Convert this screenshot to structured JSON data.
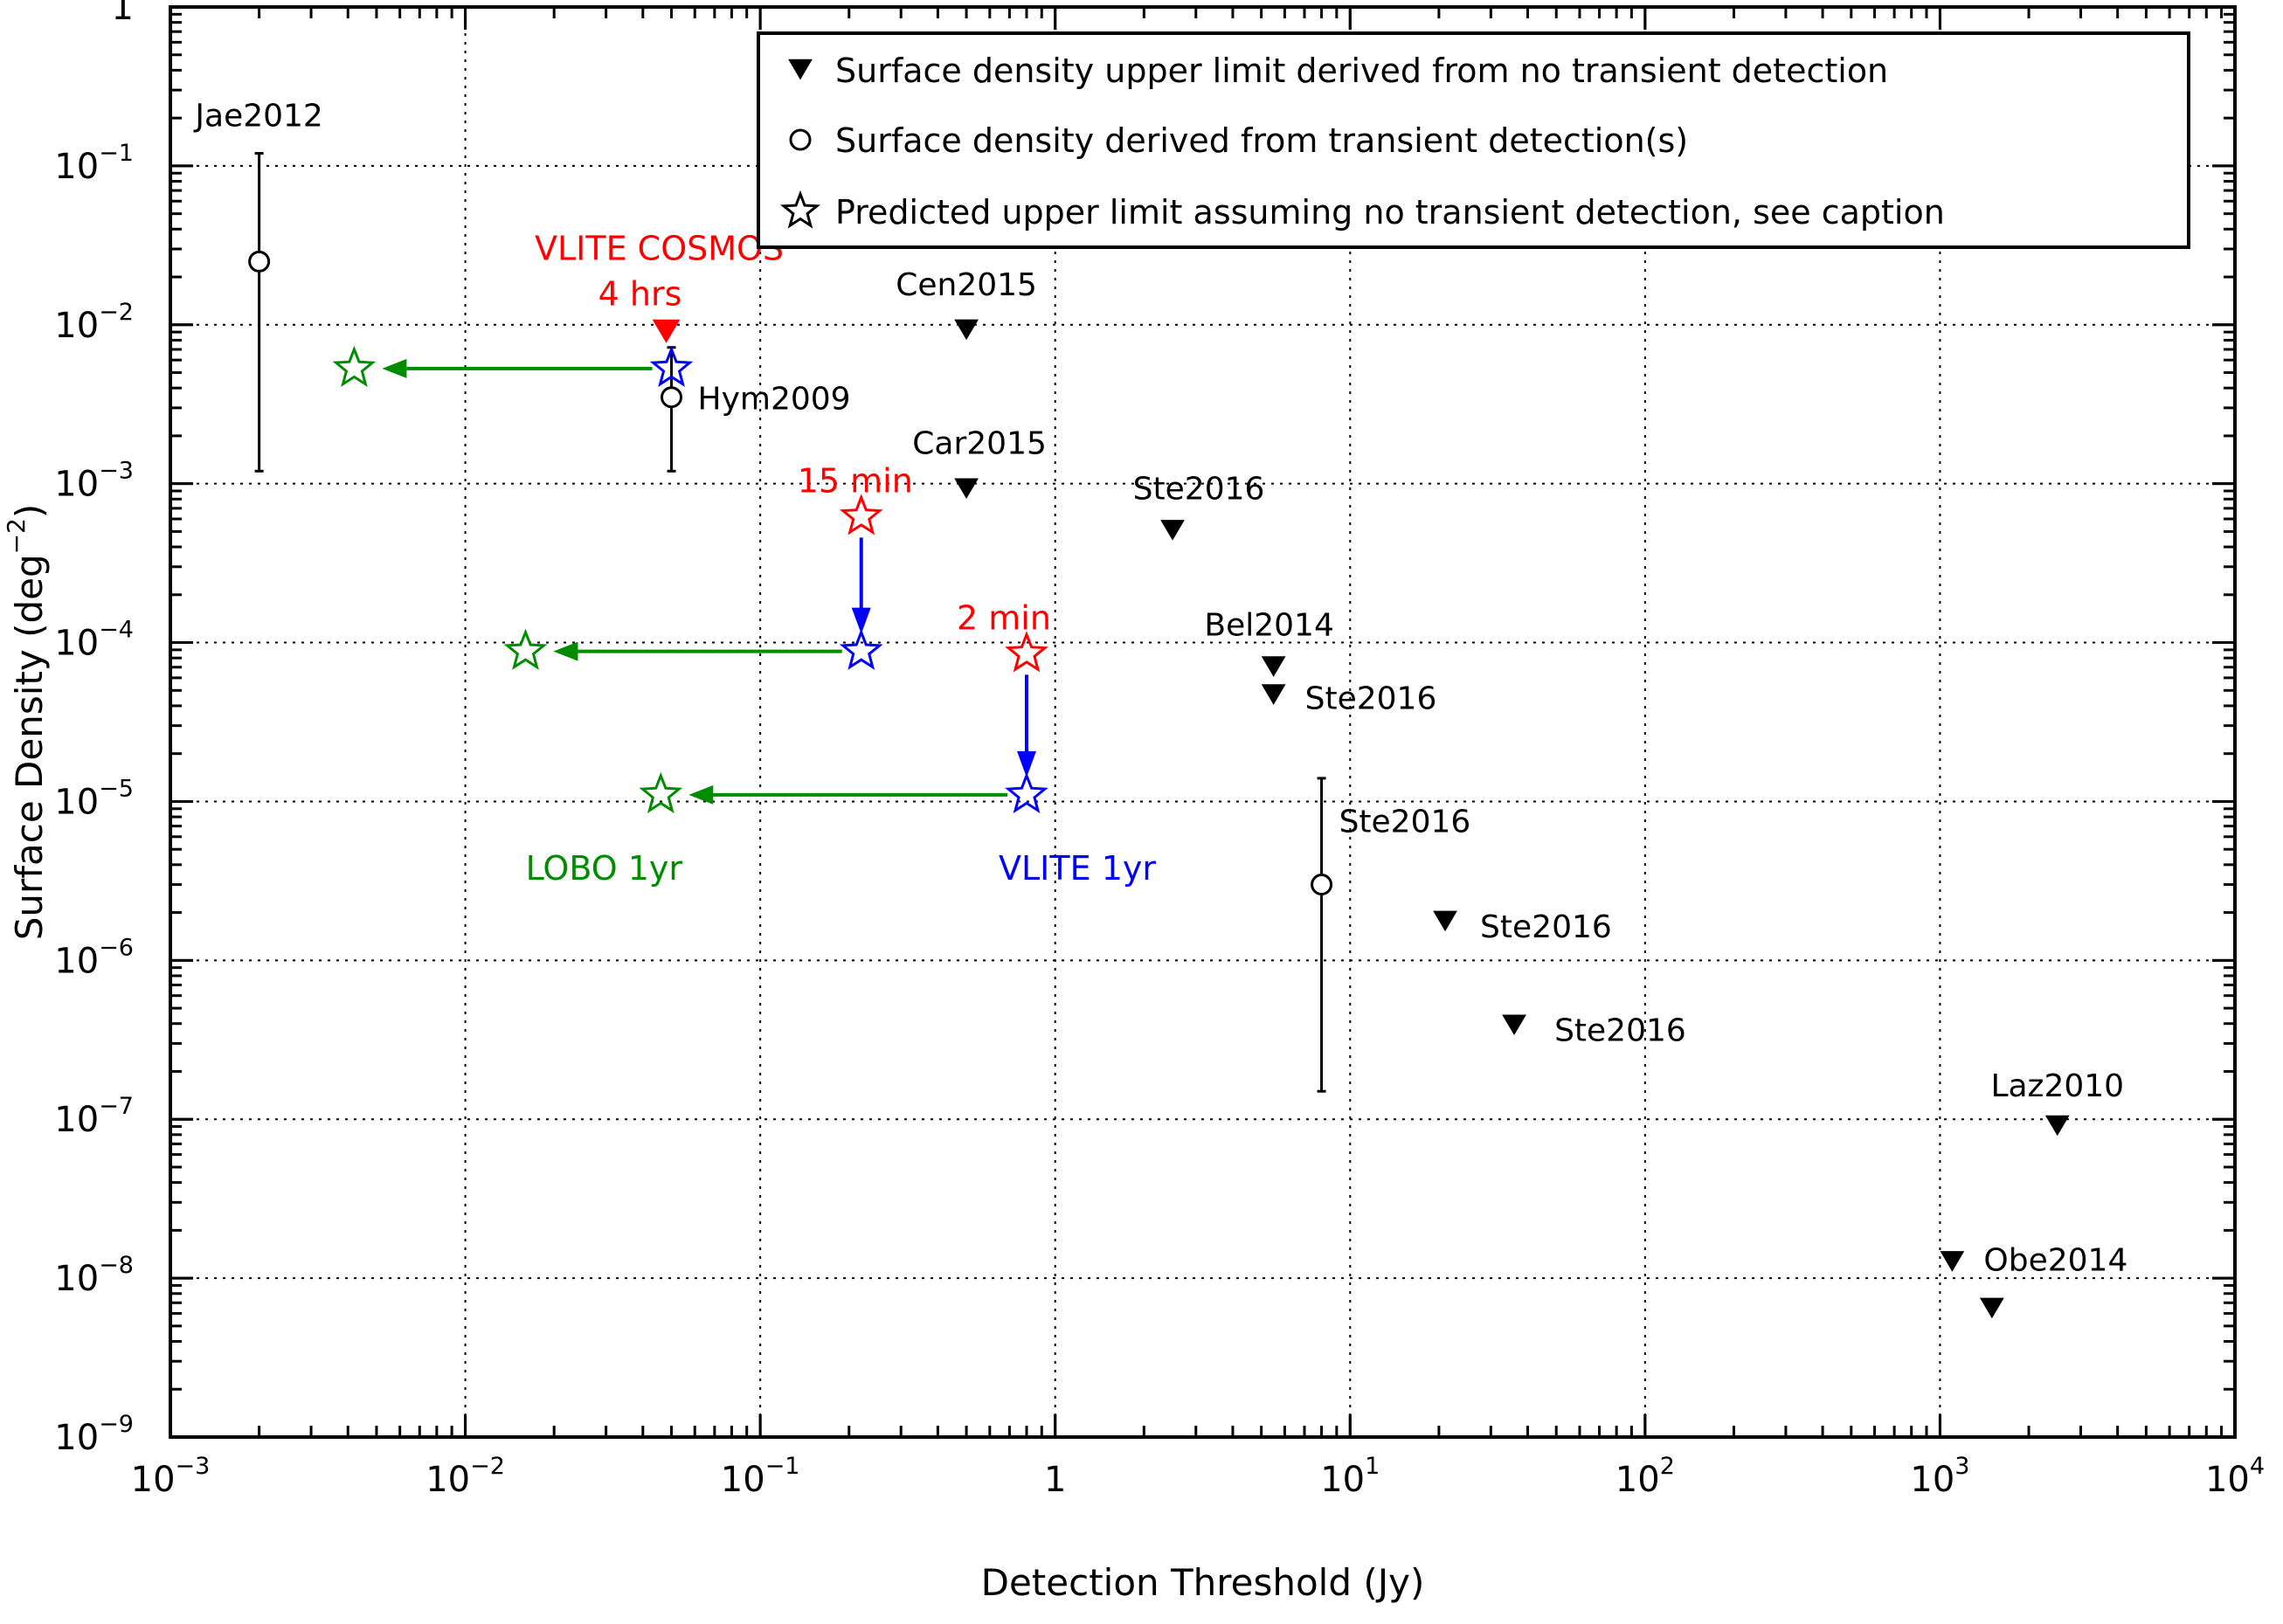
{
  "chart_data": {
    "type": "scatter",
    "title": "",
    "xlabel": "Detection Threshold (Jy)",
    "ylabel_prefix": "Surface Density (deg",
    "ylabel_exp": "−2",
    "ylabel_suffix": ")",
    "xscale": "log",
    "yscale": "log",
    "xlim": [
      0.001,
      10000
    ],
    "ylim": [
      1e-09,
      1
    ],
    "grid": true,
    "x_ticks": [
      {
        "value": 0.001,
        "base": "10",
        "exp": "−3"
      },
      {
        "value": 0.01,
        "base": "10",
        "exp": "−2"
      },
      {
        "value": 0.1,
        "base": "10",
        "exp": "−1"
      },
      {
        "value": 1,
        "base": "1",
        "exp": ""
      },
      {
        "value": 10,
        "base": "10",
        "exp": "1"
      },
      {
        "value": 100,
        "base": "10",
        "exp": "2"
      },
      {
        "value": 1000,
        "base": "10",
        "exp": "3"
      },
      {
        "value": 10000,
        "base": "10",
        "exp": "4"
      }
    ],
    "y_ticks": [
      {
        "value": 1e-09,
        "base": "10",
        "exp": "−9"
      },
      {
        "value": 1e-08,
        "base": "10",
        "exp": "−8"
      },
      {
        "value": 1e-07,
        "base": "10",
        "exp": "−7"
      },
      {
        "value": 1e-06,
        "base": "10",
        "exp": "−6"
      },
      {
        "value": 1e-05,
        "base": "10",
        "exp": "−5"
      },
      {
        "value": 0.0001,
        "base": "10",
        "exp": "−4"
      },
      {
        "value": 0.001,
        "base": "10",
        "exp": "−3"
      },
      {
        "value": 0.01,
        "base": "10",
        "exp": "−2"
      },
      {
        "value": 0.1,
        "base": "10",
        "exp": "−1"
      },
      {
        "value": 1,
        "base": "1",
        "exp": ""
      }
    ],
    "legend": {
      "position": "top-right",
      "entries": [
        {
          "marker": "triangle-down",
          "label": "Surface density upper limit derived from no transient detection"
        },
        {
          "marker": "circle-open",
          "label": "Surface density derived from transient detection(s)"
        },
        {
          "marker": "star-open",
          "label": "Predicted upper limit assuming no transient detection, see caption"
        }
      ]
    },
    "upper_limits": [
      {
        "label": "Cen2015",
        "x": 0.5,
        "y": 0.0095
      },
      {
        "label": "Car2015",
        "x": 0.5,
        "y": 0.00095
      },
      {
        "label": "Ste2016",
        "x": 2.5,
        "y": 0.00052
      },
      {
        "label": "Bel2014",
        "x": 5.5,
        "y": 7.2e-05
      },
      {
        "label": "Ste2016",
        "x": 5.5,
        "y": 4.8e-05
      },
      {
        "label": "Ste2016",
        "x": 21,
        "y": 1.8e-06
      },
      {
        "label": "Ste2016",
        "x": 36,
        "y": 4e-07
      },
      {
        "label": "Laz2010",
        "x": 2500,
        "y": 9.3e-08
      },
      {
        "label": "Obe2014",
        "x": 1100,
        "y": 1.3e-08
      },
      {
        "label": "",
        "x": 1500,
        "y": 6.6e-09
      }
    ],
    "detections": [
      {
        "label": "Jae2012",
        "x": 0.002,
        "y": 0.025,
        "err_low": 0.0012,
        "err_high": 0.12
      },
      {
        "label": "Hym2009",
        "x": 0.05,
        "y": 0.0035,
        "err_low": 0.0012,
        "err_high": 0.0072
      },
      {
        "label": "Ste2016",
        "x": 8,
        "y": 3e-06,
        "err_low": 1.5e-07,
        "err_high": 1.4e-05
      }
    ],
    "vlite_cosmos": {
      "label": "VLITE COSMOS",
      "duration": "4 hrs",
      "x": 0.048,
      "y": 0.0093,
      "color": "#ff0000"
    },
    "predicted": [
      {
        "duration": "15 min",
        "x": 0.22,
        "y": 0.00062
      },
      {
        "duration": "2 min",
        "x": 0.8,
        "y": 8.5e-05
      }
    ],
    "vlite_1yr": {
      "label": "VLITE 1yr",
      "color": "#0000ff",
      "points": [
        {
          "x": 0.05,
          "y": 0.0053
        },
        {
          "x": 0.22,
          "y": 8.8e-05
        },
        {
          "x": 0.8,
          "y": 1.1e-05
        }
      ]
    },
    "lobo_1yr": {
      "label": "LOBO 1yr",
      "color": "#008c00",
      "points": [
        {
          "x": 0.0042,
          "y": 0.0053
        },
        {
          "x": 0.016,
          "y": 8.8e-05
        },
        {
          "x": 0.046,
          "y": 1.1e-05
        }
      ]
    },
    "red_color": "#ff0000"
  }
}
